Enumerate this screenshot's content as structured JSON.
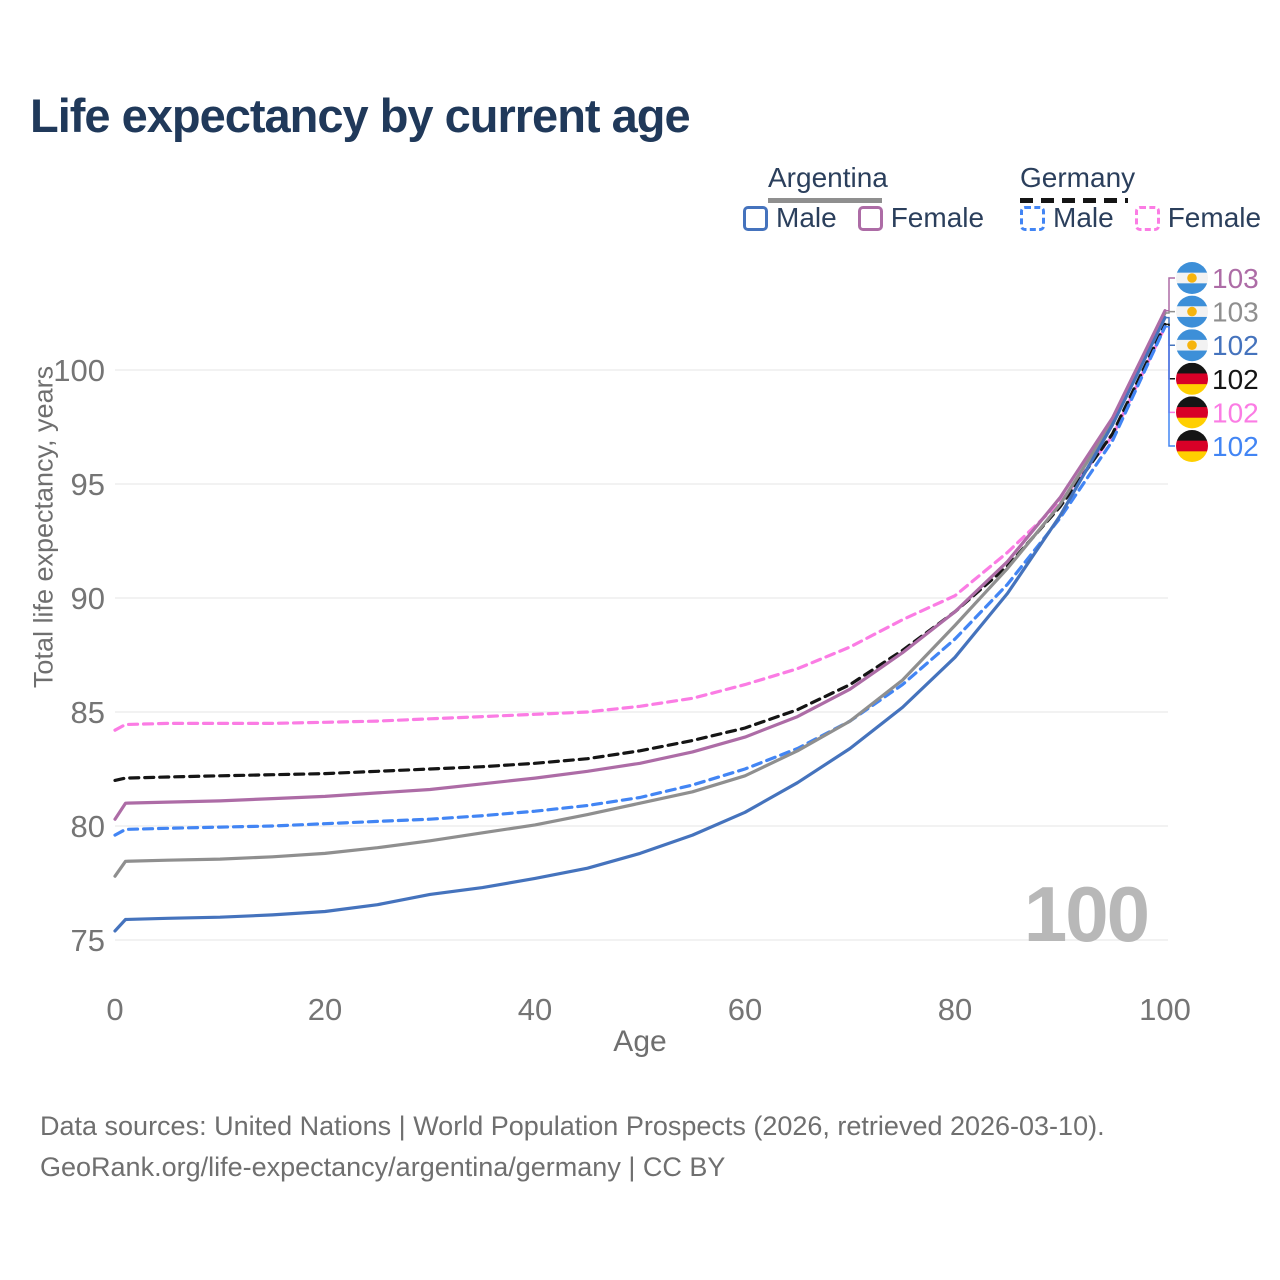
{
  "title": "Life expectancy by current age",
  "legend": {
    "groups": [
      {
        "name": "Argentina",
        "series": "ar_both",
        "items": [
          {
            "label": "Male",
            "series": "ar_male"
          },
          {
            "label": "Female",
            "series": "ar_female"
          }
        ]
      },
      {
        "name": "Germany",
        "series": "de_both",
        "items": [
          {
            "label": "Male",
            "series": "de_male"
          },
          {
            "label": "Female",
            "series": "de_female"
          }
        ]
      }
    ]
  },
  "chart_data": {
    "type": "line",
    "title": "Life expectancy by current age",
    "xlabel": "Age",
    "ylabel": "Total life expectancy, years",
    "xlim": [
      0,
      100
    ],
    "ylim": [
      75,
      100
    ],
    "x_ticks": [
      0,
      20,
      40,
      60,
      80,
      100
    ],
    "y_ticks": [
      75,
      80,
      85,
      90,
      95,
      100
    ],
    "grid": true,
    "watermark": "100",
    "x": [
      0,
      1,
      5,
      10,
      15,
      20,
      25,
      30,
      35,
      40,
      45,
      50,
      55,
      60,
      65,
      70,
      75,
      80,
      85,
      90,
      95,
      100
    ],
    "series": [
      {
        "id": "de_female",
        "name": "Germany Female",
        "color": "#fb7ce4",
        "dashed": true,
        "values": [
          84.2,
          84.45,
          84.5,
          84.5,
          84.5,
          84.55,
          84.6,
          84.7,
          84.8,
          84.9,
          85.0,
          85.25,
          85.6,
          86.2,
          86.9,
          87.85,
          89.05,
          90.1,
          92.0,
          94.2,
          97.1,
          101.9
        ]
      },
      {
        "id": "de_both",
        "name": "Germany Both sexes",
        "color": "#151515",
        "dashed": true,
        "values": [
          82.0,
          82.1,
          82.15,
          82.2,
          82.25,
          82.3,
          82.4,
          82.5,
          82.6,
          82.75,
          82.95,
          83.3,
          83.75,
          84.3,
          85.1,
          86.2,
          87.7,
          89.4,
          91.4,
          94.0,
          97.2,
          102.0
        ]
      },
      {
        "id": "de_male",
        "name": "Germany Male",
        "color": "#4285f4",
        "dashed": true,
        "values": [
          79.6,
          79.85,
          79.9,
          79.95,
          80.0,
          80.1,
          80.2,
          80.3,
          80.45,
          80.65,
          80.9,
          81.25,
          81.8,
          82.5,
          83.4,
          84.6,
          86.2,
          88.2,
          90.6,
          93.5,
          96.9,
          101.9
        ]
      },
      {
        "id": "ar_both",
        "name": "Argentina Both sexes",
        "color": "#8f8f8f",
        "dashed": false,
        "values": [
          77.8,
          78.45,
          78.5,
          78.55,
          78.65,
          78.8,
          79.05,
          79.35,
          79.7,
          80.05,
          80.5,
          81.0,
          81.5,
          82.2,
          83.3,
          84.6,
          86.4,
          88.8,
          91.3,
          94.1,
          97.7,
          102.5
        ]
      },
      {
        "id": "ar_male",
        "name": "Argentina Male",
        "color": "#4573bd",
        "dashed": false,
        "values": [
          75.4,
          75.9,
          75.95,
          76.0,
          76.1,
          76.25,
          76.55,
          77.0,
          77.3,
          77.7,
          78.15,
          78.8,
          79.6,
          80.6,
          81.9,
          83.4,
          85.2,
          87.4,
          90.2,
          93.6,
          97.6,
          102.3
        ]
      },
      {
        "id": "ar_female",
        "name": "Argentina Female",
        "color": "#ad6ca6",
        "dashed": false,
        "values": [
          80.3,
          81.0,
          81.05,
          81.1,
          81.2,
          81.3,
          81.45,
          81.6,
          81.85,
          82.1,
          82.4,
          82.75,
          83.25,
          83.9,
          84.8,
          86.0,
          87.6,
          89.4,
          91.6,
          94.4,
          97.9,
          102.6
        ]
      }
    ]
  },
  "right_labels": [
    {
      "flag": "ar",
      "value": "103",
      "series": "ar_female"
    },
    {
      "flag": "ar",
      "value": "103",
      "series": "ar_both"
    },
    {
      "flag": "ar",
      "value": "102",
      "series": "ar_male"
    },
    {
      "flag": "de",
      "value": "102",
      "series": "de_both"
    },
    {
      "flag": "de",
      "value": "102",
      "series": "de_female"
    },
    {
      "flag": "de",
      "value": "102",
      "series": "de_male"
    }
  ],
  "footer": {
    "line1": "Data sources: United Nations | World Population Prospects (2026, retrieved 2026-03-10).",
    "line2": "GeoRank.org/life-expectancy/argentina/germany | CC BY"
  },
  "colors": {
    "title": "#20395a",
    "legend_text": "#2b3f5c",
    "axis_text": "#6f6f6f",
    "tick_text": "#757575",
    "grid": "#e9e9e9",
    "watermark": "#b8b8b8",
    "flag_ar_blue": "#3d8fd8",
    "flag_ar_white": "#f2f2f2",
    "flag_ar_sun": "#f6b40e",
    "flag_de_black": "#151515",
    "flag_de_red": "#d80027",
    "flag_de_gold": "#ffcf00"
  }
}
